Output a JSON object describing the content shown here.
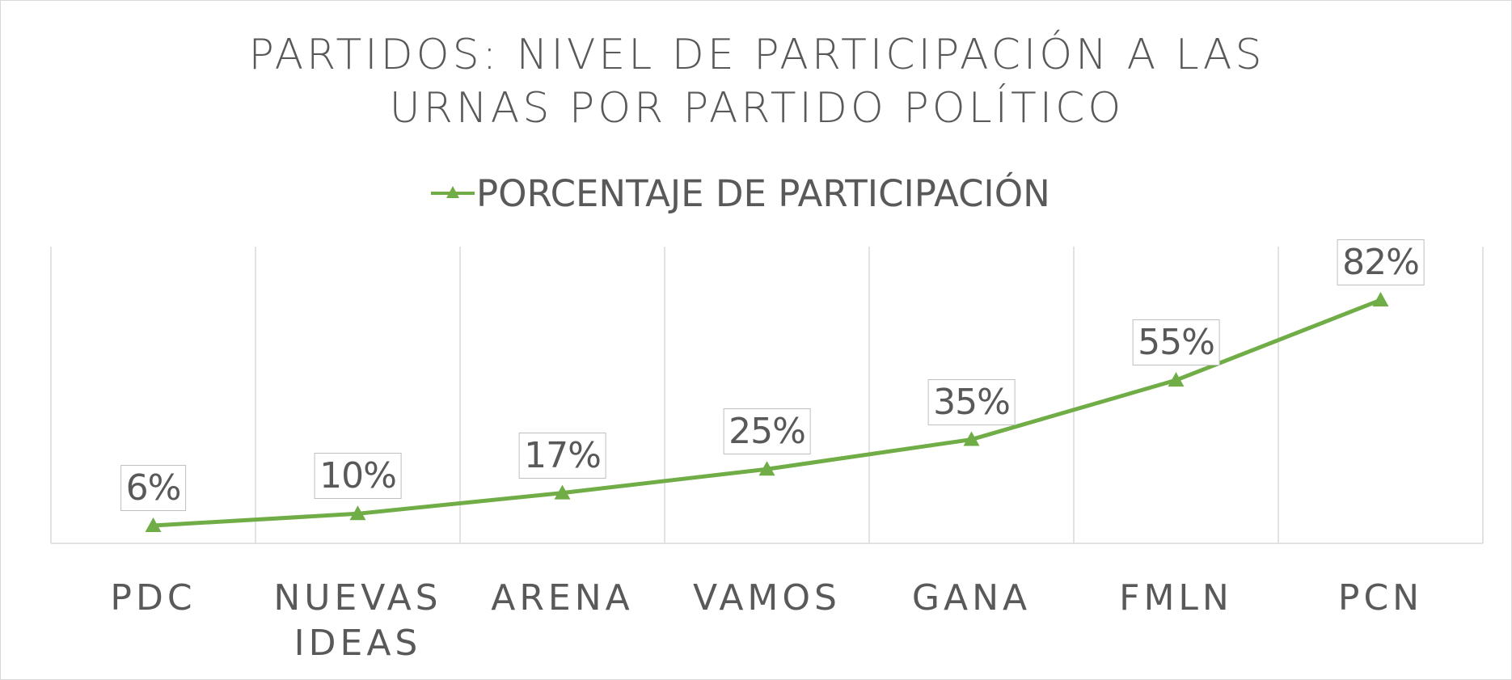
{
  "chart_data": {
    "type": "line",
    "title": "PARTIDOS: NIVEL DE PARTICIPACIÓN A LAS URNAS POR PARTIDO POLÍTICO",
    "categories": [
      "PDC",
      "NUEVAS IDEAS",
      "ARENA",
      "VAMOS",
      "GANA",
      "FMLN",
      "PCN"
    ],
    "series": [
      {
        "name": "PORCENTAJE DE PARTICIPACIÓN",
        "color": "#70ad47",
        "values": [
          6,
          10,
          17,
          25,
          35,
          55,
          82
        ],
        "value_labels": [
          "6%",
          "10%",
          "17%",
          "25%",
          "35%",
          "55%",
          "82%"
        ]
      }
    ],
    "ylim": [
      0,
      100
    ],
    "grid": true,
    "legend": "top"
  }
}
